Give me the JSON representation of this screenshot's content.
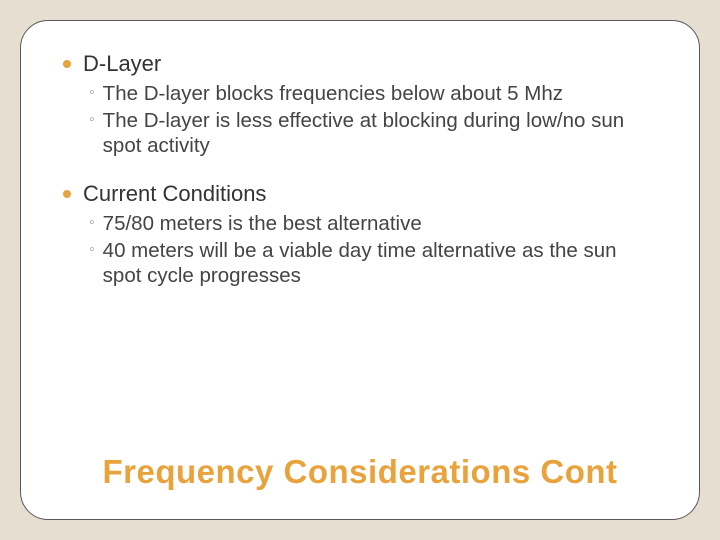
{
  "slide": {
    "background_color": "#e5ded1",
    "card": {
      "background_color": "#ffffff",
      "border_color": "#595959",
      "border_radius": 28
    },
    "bullet_color": "#e8a33d",
    "sub_bullet_color": "#9a8f7e",
    "text_color": "#333333",
    "title_color": "#e8a33d",
    "title_fontsize": 33,
    "head_fontsize": 22,
    "body_fontsize": 20.5,
    "sections": [
      {
        "heading": "D-Layer",
        "items": [
          "The D-layer blocks frequencies below about 5 Mhz",
          "The D-layer is less effective at blocking during low/no sun spot activity"
        ]
      },
      {
        "heading": "Current Conditions",
        "items": [
          "75/80 meters is the best alternative",
          "40 meters will be a viable day time alternative as the sun spot cycle progresses"
        ]
      }
    ],
    "title": "Frequency Considerations Cont"
  }
}
